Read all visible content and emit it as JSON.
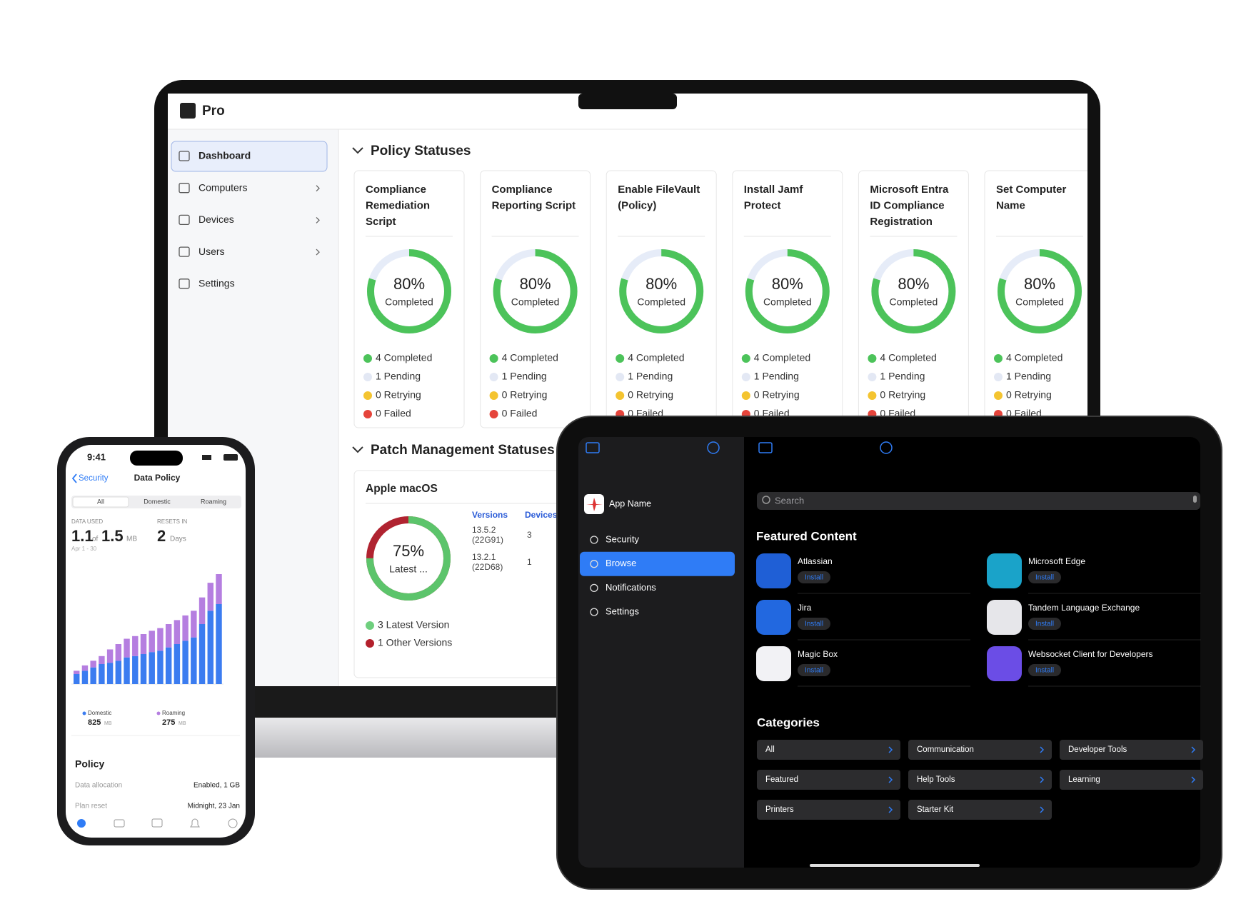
{
  "laptop": {
    "brand": "Pro",
    "nav": [
      {
        "label": "Dashboard",
        "active": true,
        "chevron": false
      },
      {
        "label": "Computers",
        "active": false,
        "chevron": true
      },
      {
        "label": "Devices",
        "active": false,
        "chevron": true
      },
      {
        "label": "Users",
        "active": false,
        "chevron": true
      },
      {
        "label": "Settings",
        "active": false,
        "chevron": false
      }
    ],
    "policy_section": "Policy Statuses",
    "legend_colors": [
      "#4cc35a",
      "#e3e8f4",
      "#f4c430",
      "#e5443b"
    ],
    "policies": [
      {
        "title_lines": [
          "Compliance",
          "Remediation",
          "Script"
        ],
        "percent": 80,
        "percent_label": "80%",
        "caption": "Completed",
        "legend": [
          "4 Completed",
          "1 Pending",
          "0 Retrying",
          "0 Failed"
        ]
      },
      {
        "title_lines": [
          "Compliance",
          "Reporting Script"
        ],
        "percent": 80,
        "percent_label": "80%",
        "caption": "Completed",
        "legend": [
          "4 Completed",
          "1 Pending",
          "0 Retrying",
          "0 Failed"
        ]
      },
      {
        "title_lines": [
          "Enable FileVault",
          "(Policy)"
        ],
        "percent": 80,
        "percent_label": "80%",
        "caption": "Completed",
        "legend": [
          "4 Completed",
          "1 Pending",
          "0 Retrying",
          "0 Failed"
        ]
      },
      {
        "title_lines": [
          "Install Jamf",
          "Protect"
        ],
        "percent": 80,
        "percent_label": "80%",
        "caption": "Completed",
        "legend": [
          "4 Completed",
          "1 Pending",
          "0 Retrying",
          "0 Failed"
        ]
      },
      {
        "title_lines": [
          "Microsoft Entra",
          "ID Compliance",
          "Registration"
        ],
        "percent": 80,
        "percent_label": "80%",
        "caption": "Completed",
        "legend": [
          "4 Completed",
          "1 Pending",
          "0 Retrying",
          "0 Failed"
        ]
      },
      {
        "title_lines": [
          "Set Computer",
          "Name"
        ],
        "percent": 80,
        "percent_label": "80%",
        "caption": "Completed",
        "legend": [
          "4 Completed",
          "1 Pending",
          "0 Retrying",
          "0 Failed"
        ]
      }
    ],
    "patch_section": "Patch Management Statuses",
    "patch": {
      "title": "Apple macOS",
      "percent": 75,
      "percent_label": "75%",
      "caption": "Latest ...",
      "ring_color": "#5cc46b",
      "ring_track": "#b02330",
      "columns": [
        "Versions",
        "Devices"
      ],
      "rows": [
        {
          "version_lines": [
            "13.5.2",
            "(22G91)"
          ],
          "devices": 3
        },
        {
          "version_lines": [
            "13.2.1",
            "(22D68)"
          ],
          "devices": 1
        }
      ],
      "legend": [
        "3 Latest Version",
        "1 Other Versions"
      ],
      "legend_colors": [
        "#6fcf7e",
        "#b3202c"
      ]
    }
  },
  "phone": {
    "time": "9:41",
    "back": "Security",
    "title": "Data Policy",
    "segments": [
      "All",
      "Domestic",
      "Roaming"
    ],
    "used_label": "DATA USED",
    "used": "1.1",
    "of": "of",
    "total": "1.5",
    "unit": "MB",
    "period": "Apr 1 - 30",
    "resets_label": "RESETS IN",
    "resets": "2",
    "resets_unit": "Days",
    "chart": {
      "type": "bar",
      "stacked": true,
      "ylim": [
        0,
        18
      ],
      "series": [
        {
          "name": "Domestic",
          "color": "#3b7cf0",
          "values": [
            1.5,
            2,
            2.5,
            3,
            3.2,
            3.5,
            4,
            4.2,
            4.5,
            4.8,
            5,
            5.5,
            6,
            6.5,
            7,
            9,
            11,
            12
          ]
        },
        {
          "name": "Roaming",
          "color": "#b57ee0",
          "values": [
            0.5,
            0.8,
            1,
            1.2,
            2,
            2.5,
            2.8,
            3,
            3,
            3.2,
            3.4,
            3.5,
            3.6,
            3.8,
            4,
            4,
            4.2,
            4.5
          ]
        }
      ]
    },
    "totals": [
      {
        "value": 825,
        "unit": "MB"
      },
      {
        "value": 275,
        "unit": "MB"
      }
    ],
    "policy_title": "Policy",
    "policy_rows": [
      [
        "Data allocation",
        "Enabled, 1 GB"
      ],
      [
        "Plan reset",
        "Midnight, 23 Jan"
      ]
    ]
  },
  "tablet": {
    "app_name": "App Name",
    "nav": [
      {
        "label": "Security",
        "active": false
      },
      {
        "label": "Browse",
        "active": true
      },
      {
        "label": "Notifications",
        "active": false
      },
      {
        "label": "Settings",
        "active": false
      }
    ],
    "search": "Search",
    "featured_title": "Featured Content",
    "install": "Install",
    "apps": [
      {
        "name": "Atlassian",
        "color": "#1f5fd6"
      },
      {
        "name": "Microsoft Edge",
        "color": "#1aa3c9"
      },
      {
        "name": "Jira",
        "color": "#2268e0"
      },
      {
        "name": "Tandem Language Exchange",
        "color": "#e6e6ea"
      },
      {
        "name": "Magic Box",
        "color": "#f2f2f5"
      },
      {
        "name": "Websocket Client for Developers",
        "color": "#6b4de6"
      }
    ],
    "categories_title": "Categories",
    "categories": [
      "All",
      "Communication",
      "Developer Tools",
      "Featured",
      "Help Tools",
      "Learning",
      "Printers",
      "Starter Kit"
    ]
  }
}
